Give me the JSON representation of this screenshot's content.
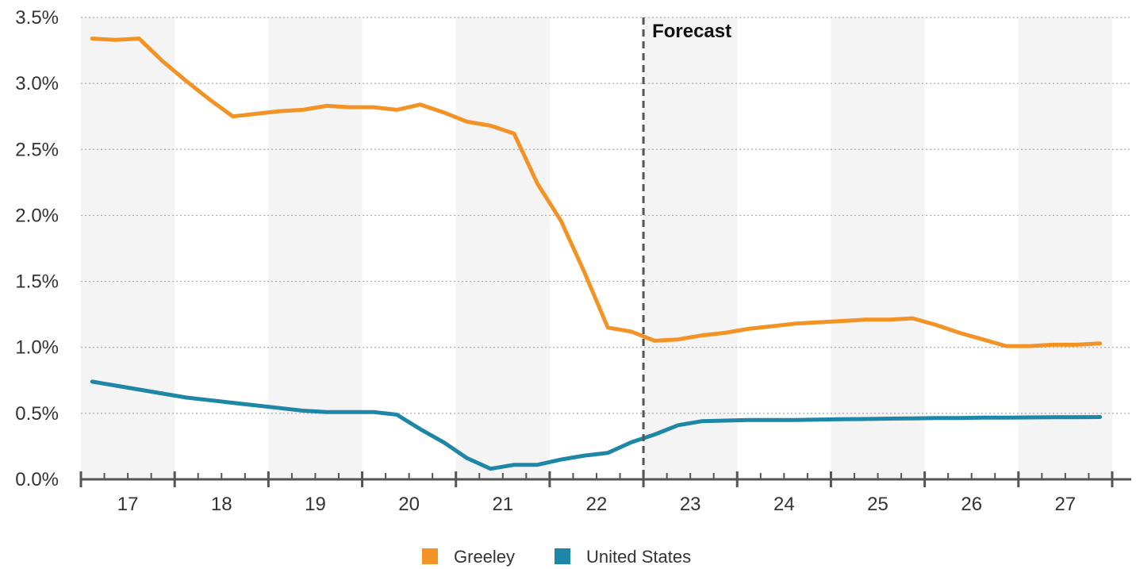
{
  "chart_data": {
    "type": "line",
    "x_ticks": [
      "17",
      "18",
      "19",
      "20",
      "21",
      "22",
      "23",
      "24",
      "25",
      "26",
      "27"
    ],
    "y_ticks": [
      "0.0%",
      "0.5%",
      "1.0%",
      "1.5%",
      "2.0%",
      "2.5%",
      "3.0%",
      "3.5%"
    ],
    "ylim": [
      0,
      3.5
    ],
    "grid": true,
    "forecast_label": "Forecast",
    "forecast_start": 2022.5,
    "legend_position": "bottom",
    "series": [
      {
        "name": "Greeley",
        "color": "#F39325",
        "x": [
          2016.62,
          2016.87,
          2017.12,
          2017.37,
          2017.62,
          2017.87,
          2018.12,
          2018.37,
          2018.62,
          2018.87,
          2019.12,
          2019.37,
          2019.62,
          2019.87,
          2020.12,
          2020.37,
          2020.62,
          2020.87,
          2021.12,
          2021.37,
          2021.62,
          2021.87,
          2022.12,
          2022.37,
          2022.62,
          2022.87,
          2023.12,
          2023.37,
          2023.62,
          2023.87,
          2024.12,
          2024.37,
          2024.62,
          2024.87,
          2025.12,
          2025.37,
          2025.62,
          2025.87,
          2026.12,
          2026.37,
          2026.62,
          2026.87,
          2027.12,
          2027.37
        ],
        "values": [
          3.34,
          3.33,
          3.34,
          3.17,
          3.02,
          2.88,
          2.75,
          2.77,
          2.79,
          2.8,
          2.83,
          2.82,
          2.82,
          2.8,
          2.84,
          2.78,
          2.71,
          2.68,
          2.62,
          2.24,
          1.96,
          1.57,
          1.15,
          1.12,
          1.05,
          1.06,
          1.09,
          1.11,
          1.14,
          1.16,
          1.18,
          1.19,
          1.2,
          1.21,
          1.21,
          1.22,
          1.17,
          1.11,
          1.06,
          1.01,
          1.01,
          1.02,
          1.02,
          1.03
        ]
      },
      {
        "name": "United States",
        "color": "#1E87A7",
        "x": [
          2016.62,
          2016.87,
          2017.12,
          2017.37,
          2017.62,
          2017.87,
          2018.12,
          2018.37,
          2018.62,
          2018.87,
          2019.12,
          2019.37,
          2019.62,
          2019.87,
          2020.12,
          2020.37,
          2020.62,
          2020.87,
          2021.12,
          2021.37,
          2021.62,
          2021.87,
          2022.12,
          2022.37,
          2022.62,
          2022.87,
          2023.12,
          2023.37,
          2023.62,
          2023.87,
          2024.12,
          2024.37,
          2024.62,
          2024.87,
          2025.12,
          2025.37,
          2025.62,
          2025.87,
          2026.12,
          2026.37,
          2026.62,
          2026.87,
          2027.12,
          2027.37
        ],
        "values": [
          0.74,
          0.71,
          0.68,
          0.65,
          0.62,
          0.6,
          0.58,
          0.56,
          0.54,
          0.52,
          0.51,
          0.51,
          0.51,
          0.49,
          0.38,
          0.28,
          0.16,
          0.08,
          0.11,
          0.11,
          0.15,
          0.18,
          0.2,
          0.28,
          0.34,
          0.41,
          0.44,
          0.445,
          0.45,
          0.45,
          0.45,
          0.452,
          0.455,
          0.457,
          0.46,
          0.462,
          0.464,
          0.465,
          0.467,
          0.468,
          0.469,
          0.47,
          0.471,
          0.472
        ]
      }
    ]
  }
}
